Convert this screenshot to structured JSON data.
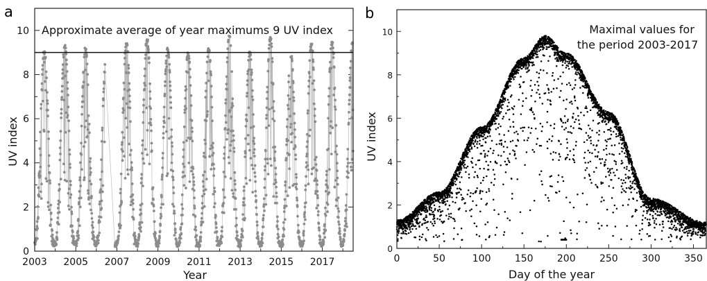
{
  "chart_data": [
    {
      "panel": "a",
      "type": "line",
      "xlabel": "Year",
      "ylabel": "UV index",
      "xlim": [
        2003,
        2018.5
      ],
      "ylim": [
        0,
        11
      ],
      "xticks": [
        "2003",
        "2005",
        "2007",
        "2009",
        "2011",
        "2013",
        "2015",
        "2017"
      ],
      "yticks": [
        "0",
        "2",
        "4",
        "6",
        "8",
        "10"
      ],
      "annotation": "Approximate average of year maximums 9 UV index",
      "reference_line": {
        "y": 9
      },
      "marker_color": "#8c8c8c",
      "line_color": "#b4b4b4",
      "yearly_peaks": [
        {
          "year": 2003,
          "peak_uv": 9.1
        },
        {
          "year": 2004,
          "peak_uv": 9.4
        },
        {
          "year": 2005,
          "peak_uv": 9.2
        },
        {
          "year": 2006,
          "peak_uv": 8.6
        },
        {
          "year": 2007,
          "peak_uv": 9.5
        },
        {
          "year": 2008,
          "peak_uv": 9.6
        },
        {
          "year": 2009,
          "peak_uv": 9.2
        },
        {
          "year": 2010,
          "peak_uv": 9.0
        },
        {
          "year": 2011,
          "peak_uv": 9.2
        },
        {
          "year": 2012,
          "peak_uv": 9.8
        },
        {
          "year": 2013,
          "peak_uv": 9.1
        },
        {
          "year": 2014,
          "peak_uv": 9.7
        },
        {
          "year": 2015,
          "peak_uv": 8.9
        },
        {
          "year": 2016,
          "peak_uv": 9.4
        },
        {
          "year": 2017,
          "peak_uv": 9.5
        },
        {
          "year": 2018,
          "peak_uv": 9.5
        }
      ],
      "winter_minimum_uv": 0.3
    },
    {
      "panel": "b",
      "type": "scatter",
      "xlabel": "Day of the year",
      "ylabel": "UV index",
      "xlim": [
        0,
        366
      ],
      "ylim": [
        0,
        11
      ],
      "xticks": [
        "0",
        "50",
        "100",
        "150",
        "200",
        "250",
        "300",
        "350"
      ],
      "yticks": [
        "0",
        "2",
        "4",
        "6",
        "8",
        "10"
      ],
      "annotation": [
        "Maximal values for",
        "the period 2003-2017"
      ],
      "marker_color": "#000000",
      "upper_envelope": [
        {
          "day": 0,
          "uv": 1.3
        },
        {
          "day": 50,
          "uv": 2.6
        },
        {
          "day": 100,
          "uv": 5.6
        },
        {
          "day": 150,
          "uv": 8.8
        },
        {
          "day": 175,
          "uv": 9.8
        },
        {
          "day": 200,
          "uv": 9.0
        },
        {
          "day": 250,
          "uv": 6.3
        },
        {
          "day": 300,
          "uv": 2.3
        },
        {
          "day": 365,
          "uv": 1.2
        }
      ],
      "isolated_cluster": {
        "day": 197,
        "uv": 0.4
      }
    }
  ]
}
